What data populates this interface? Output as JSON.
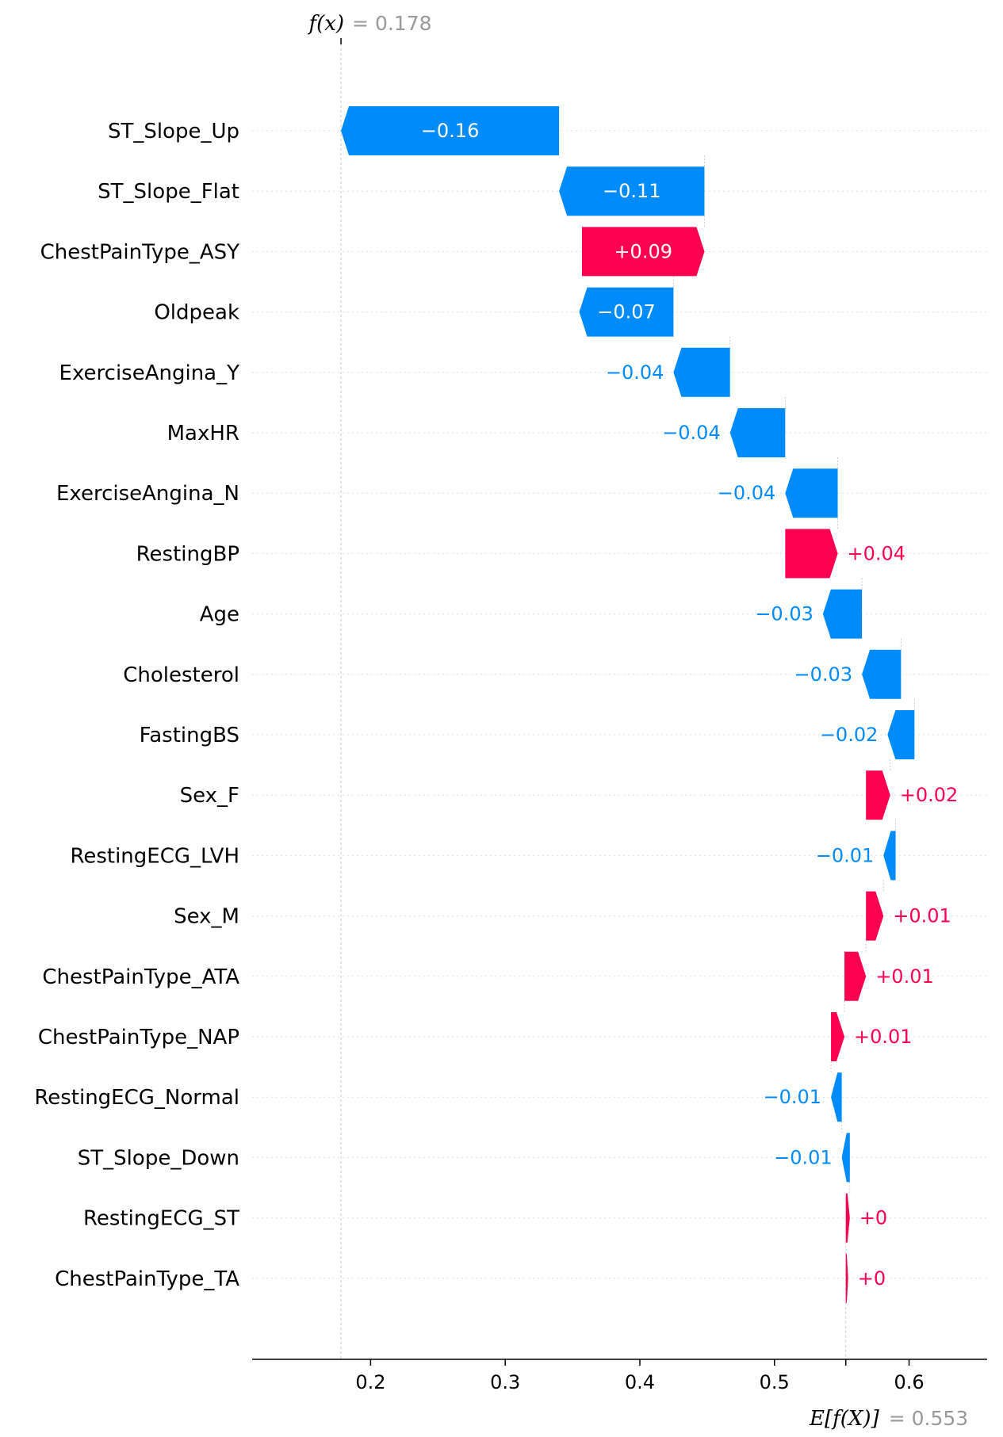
{
  "chart_data": {
    "type": "bar",
    "subtype": "waterfall",
    "features": [
      {
        "name": "ST_Slope_Up",
        "value": -0.16,
        "label": "−0.16"
      },
      {
        "name": "ST_Slope_Flat",
        "value": -0.11,
        "label": "−0.11"
      },
      {
        "name": "ChestPainType_ASY",
        "value": 0.09,
        "label": "+0.09"
      },
      {
        "name": "Oldpeak",
        "value": -0.07,
        "label": "−0.07"
      },
      {
        "name": "ExerciseAngina_Y",
        "value": -0.04,
        "label": "−0.04"
      },
      {
        "name": "MaxHR",
        "value": -0.04,
        "label": "−0.04"
      },
      {
        "name": "ExerciseAngina_N",
        "value": -0.04,
        "label": "−0.04"
      },
      {
        "name": "RestingBP",
        "value": 0.04,
        "label": "+0.04"
      },
      {
        "name": "Age",
        "value": -0.03,
        "label": "−0.03"
      },
      {
        "name": "Cholesterol",
        "value": -0.03,
        "label": "−0.03"
      },
      {
        "name": "FastingBS",
        "value": -0.02,
        "label": "−0.02"
      },
      {
        "name": "Sex_F",
        "value": 0.02,
        "label": "+0.02"
      },
      {
        "name": "RestingECG_LVH",
        "value": -0.01,
        "label": "−0.01"
      },
      {
        "name": "Sex_M",
        "value": 0.01,
        "label": "+0.01"
      },
      {
        "name": "ChestPainType_ATA",
        "value": 0.01,
        "label": "+0.01"
      },
      {
        "name": "ChestPainType_NAP",
        "value": 0.01,
        "label": "+0.01"
      },
      {
        "name": "RestingECG_Normal",
        "value": -0.01,
        "label": "−0.01"
      },
      {
        "name": "ST_Slope_Down",
        "value": -0.01,
        "label": "−0.01"
      },
      {
        "name": "RestingECG_ST",
        "value": 0.0,
        "label": "+0"
      },
      {
        "name": "ChestPainType_TA",
        "value": 0.0,
        "label": "+0"
      }
    ],
    "bar_start": [
      0.178,
      0.34,
      0.357,
      0.355,
      0.425,
      0.467,
      0.508,
      0.508,
      0.536,
      0.565,
      0.584,
      0.568,
      0.581,
      0.568,
      0.552,
      0.542,
      0.55,
      0.556,
      0.553,
      0.553
    ],
    "bar_end": [
      0.34,
      0.448,
      0.448,
      0.425,
      0.467,
      0.508,
      0.547,
      0.547,
      0.565,
      0.594,
      0.604,
      0.586,
      0.59,
      0.581,
      0.568,
      0.552,
      0.542,
      0.55,
      0.556,
      0.553
    ],
    "xlim": [
      0.112,
      0.658
    ],
    "xticks": [
      0.2,
      0.3,
      0.4,
      0.5,
      0.6
    ],
    "xtick_labels": [
      "0.2",
      "0.3",
      "0.4",
      "0.5",
      "0.6"
    ],
    "fx": {
      "symbol": "f(x)",
      "equals": "= 0.178",
      "value": 0.178
    },
    "efx": {
      "symbol": "E[f(X)]",
      "equals": "= 0.553",
      "value": 0.553
    },
    "colors": {
      "positive": "#ff0051",
      "negative": "#008bfb",
      "gridline": "#cccccc",
      "axis": "#000000",
      "annotation": "#999999"
    }
  }
}
